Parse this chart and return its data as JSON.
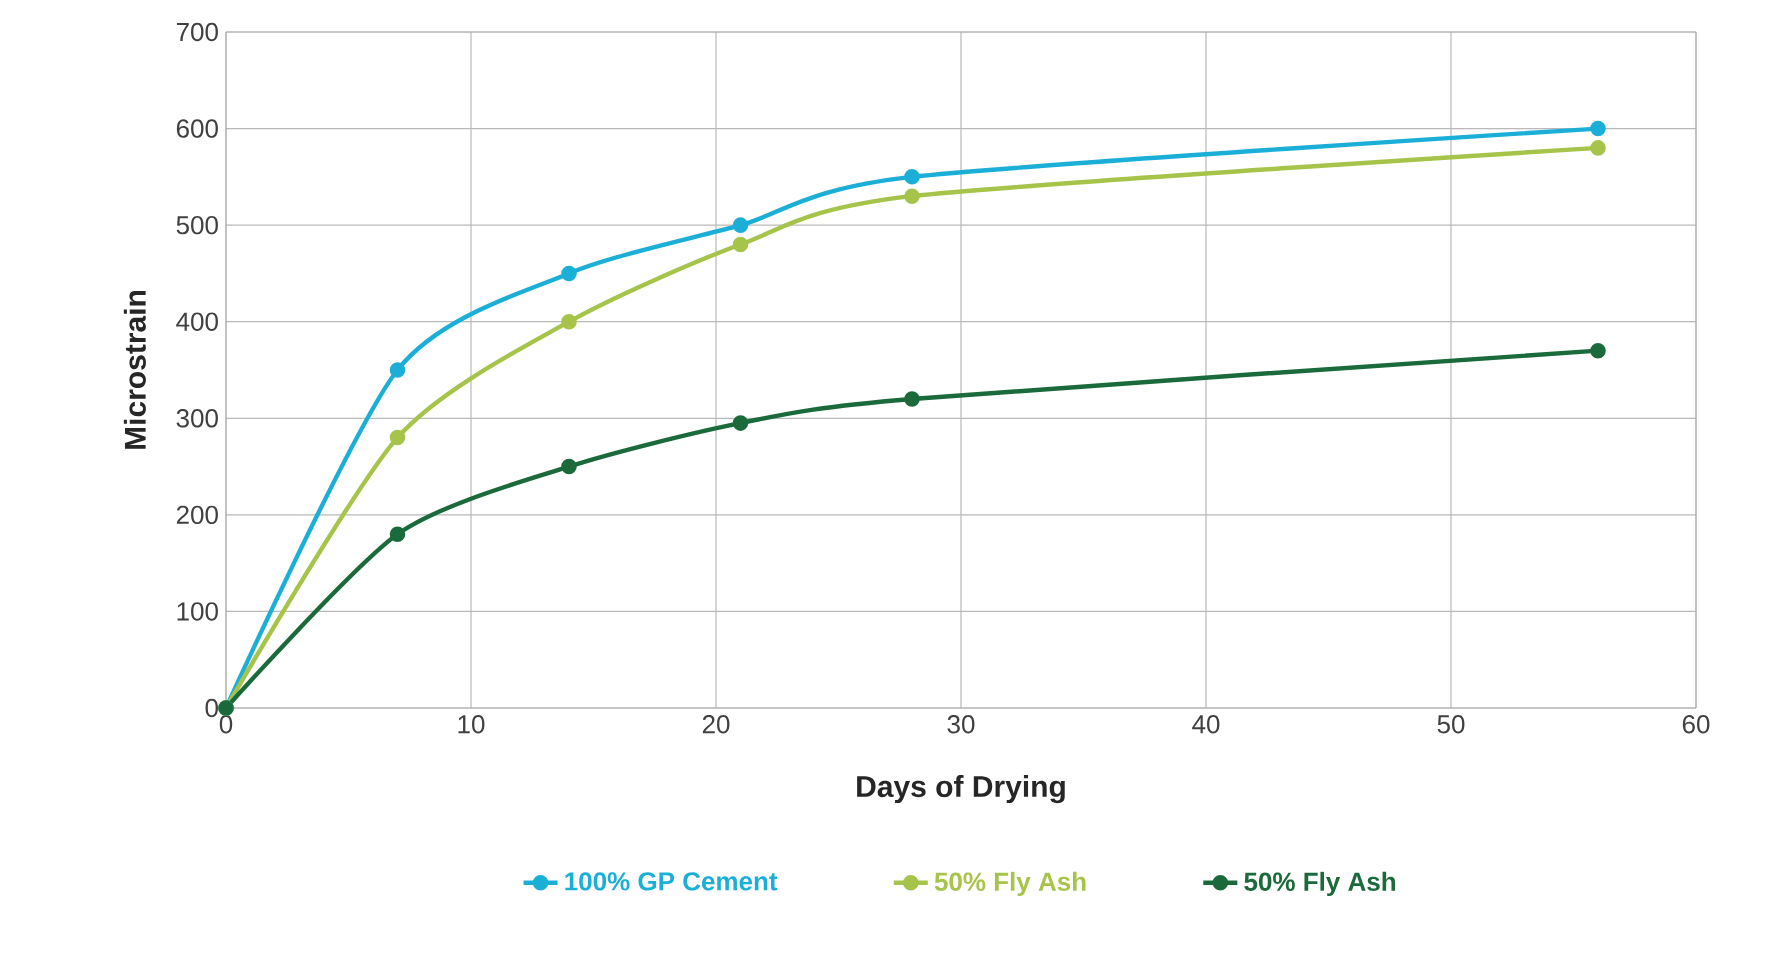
{
  "chart_data": {
    "type": "line",
    "xlabel": "Days of Drying",
    "ylabel": "Microstrain",
    "xlim": [
      0,
      60
    ],
    "xticks": [
      0,
      10,
      20,
      30,
      40,
      50,
      60
    ],
    "ylim": [
      0,
      700
    ],
    "yticks": [
      0,
      100,
      200,
      300,
      400,
      500,
      600,
      700
    ],
    "grid": true,
    "legend": "bottom",
    "marker": "circle",
    "line_style": "solid",
    "series": [
      {
        "name": "100% GP Cement",
        "color": "#1bafd8",
        "x": [
          0,
          7,
          14,
          21,
          28,
          56
        ],
        "values": [
          0,
          350,
          450,
          500,
          550,
          600
        ]
      },
      {
        "name": "50% Fly Ash",
        "color": "#a6c34a",
        "x": [
          0,
          7,
          14,
          21,
          28,
          56
        ],
        "values": [
          0,
          280,
          400,
          480,
          530,
          580
        ]
      },
      {
        "name": "50% Fly Ash",
        "color": "#1a6a3c",
        "x": [
          0,
          7,
          14,
          21,
          28,
          56
        ],
        "values": [
          0,
          180,
          250,
          295,
          320,
          370
        ]
      }
    ]
  }
}
